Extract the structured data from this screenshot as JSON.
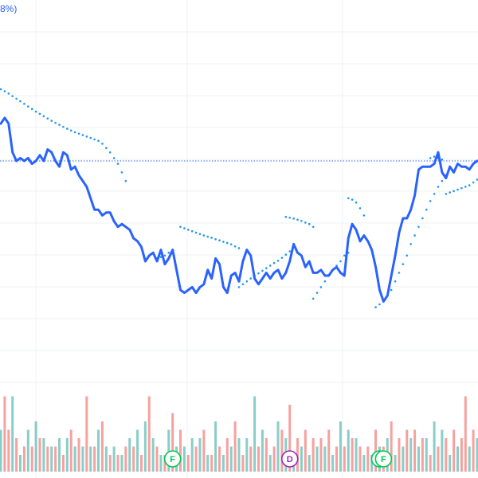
{
  "header": {
    "pct_fragment": "8%)"
  },
  "colors": {
    "price_line": "#2962ff",
    "parabolic_sar": "#2196f3",
    "ref_line": "#2962ff",
    "vol_up": "#26a69a",
    "vol_down": "#ef5350",
    "grid": "#eef0f3",
    "marker_f": "#00c853",
    "marker_d": "#9c27b0"
  },
  "chart_data": {
    "type": "line",
    "title": "",
    "xlabel": "",
    "ylabel": "",
    "grid": true,
    "ylim": [
      0,
      100
    ],
    "reference_line": 55,
    "price": [
      68,
      70,
      68,
      58,
      55,
      56,
      55,
      56,
      54,
      55,
      57,
      55,
      59,
      58,
      55,
      53,
      58,
      57,
      52,
      53,
      50,
      48,
      46,
      42,
      38,
      38,
      36,
      37,
      37,
      34,
      32,
      33,
      32,
      31,
      28,
      27,
      25,
      20,
      22,
      23,
      20,
      24,
      19,
      21,
      24,
      17,
      10,
      9,
      10,
      11,
      9,
      11,
      12,
      17,
      14,
      21,
      19,
      11,
      9,
      15,
      16,
      13,
      20,
      24,
      22,
      14,
      12,
      14,
      16,
      14,
      16,
      17,
      14,
      16,
      20,
      26,
      23,
      22,
      18,
      20,
      16,
      16,
      17,
      15,
      15,
      17,
      18,
      16,
      15,
      28,
      33,
      31,
      27,
      29,
      27,
      24,
      18,
      10,
      6,
      8,
      15,
      22,
      30,
      35,
      35,
      38,
      43,
      52,
      53,
      53,
      53,
      54,
      58,
      51,
      49,
      53,
      51,
      54,
      53,
      53,
      52,
      54,
      55
    ],
    "parabolic_sar": [
      {
        "x": [
          0,
          1,
          2,
          3,
          4,
          5,
          6,
          7,
          8,
          9,
          10,
          11,
          12,
          13,
          14,
          15,
          16,
          17,
          18,
          19,
          20,
          21,
          22,
          23,
          24,
          25,
          26,
          27,
          28,
          29,
          30,
          31,
          32
        ],
        "y": [
          80,
          79.3,
          78.5,
          77.6,
          76.7,
          75.8,
          74.9,
          74,
          73.1,
          72.2,
          71.4,
          70.6,
          69.8,
          69,
          68.3,
          67.6,
          66.9,
          66.2,
          65.6,
          65,
          64.5,
          64,
          63.5,
          63,
          62.5,
          62,
          61,
          59.5,
          58,
          56,
          54,
          51,
          48
        ]
      },
      {
        "x": [
          40,
          41,
          42,
          43,
          44
        ],
        "y": [
          21,
          21.5,
          22,
          23,
          24
        ]
      },
      {
        "x": [
          46,
          47,
          48,
          49,
          50,
          51,
          52,
          53,
          54,
          55,
          56,
          57,
          58,
          59,
          60,
          61
        ],
        "y": [
          32,
          31.5,
          31,
          30.5,
          30,
          29.5,
          29,
          28.6,
          28.2,
          27.7,
          27.3,
          26.8,
          26.4,
          25.9,
          25.2,
          24.6
        ]
      },
      {
        "x": [
          61,
          62,
          63,
          64,
          65,
          66,
          67,
          68,
          69,
          70,
          71,
          72,
          73,
          74
        ],
        "y": [
          11,
          12,
          13,
          14,
          15,
          15.8,
          16.7,
          17.6,
          18.5,
          19.4,
          20.2,
          21.2,
          22.3,
          23.5
        ]
      },
      {
        "x": [
          73,
          74,
          75,
          76,
          77,
          78,
          79,
          80
        ],
        "y": [
          35.5,
          35.2,
          34.9,
          34.5,
          34.1,
          33.5,
          33,
          32
        ]
      },
      {
        "x": [
          80,
          81,
          82,
          83,
          84,
          85,
          86,
          87,
          88,
          89
        ],
        "y": [
          7,
          9,
          11,
          13,
          15,
          17,
          18.5,
          20,
          22,
          23
        ]
      },
      {
        "x": [
          89,
          90,
          91,
          92,
          93
        ],
        "y": [
          42,
          41.5,
          40.5,
          38.5,
          36
        ]
      },
      {
        "x": [
          96,
          97,
          98,
          99,
          100,
          101,
          102,
          103,
          104,
          105,
          106,
          107,
          108,
          109,
          110,
          111,
          112,
          113,
          114
        ],
        "y": [
          4,
          5,
          6.5,
          8,
          10,
          13,
          16,
          19,
          22,
          26,
          29,
          32,
          35,
          38,
          41,
          43.5,
          46,
          48,
          50
        ]
      },
      {
        "x": [
          110,
          111,
          112,
          113
        ],
        "y": [
          56,
          56.5,
          56,
          55.5
        ]
      },
      {
        "x": [
          114,
          115,
          116,
          117,
          118,
          119,
          120,
          121,
          122
        ],
        "y": [
          43.5,
          44,
          44.5,
          45,
          45.5,
          46,
          46.5,
          47.5,
          48.5
        ]
      }
    ],
    "volume": [
      5,
      9,
      5,
      9,
      4,
      2,
      3,
      5,
      3,
      6,
      4,
      4,
      3,
      3,
      3,
      4,
      2,
      4,
      5,
      3,
      4,
      3,
      9,
      3,
      3,
      5,
      6,
      3,
      2,
      3,
      2,
      2,
      3,
      4,
      3,
      5,
      2,
      6,
      9,
      4,
      3,
      2,
      2,
      5,
      7,
      3,
      5,
      3,
      2,
      4,
      3,
      4,
      5,
      2,
      2,
      6,
      3,
      2,
      4,
      3,
      6,
      4,
      2,
      4,
      3,
      9,
      3,
      5,
      4,
      2,
      3,
      6,
      5,
      4,
      8,
      2,
      4,
      3,
      5,
      2,
      4,
      3,
      4,
      3,
      5,
      2,
      3,
      6,
      3,
      5,
      4,
      4,
      3,
      2,
      3,
      2,
      5,
      3,
      3,
      4,
      6,
      2,
      4,
      3,
      5,
      4,
      5,
      3,
      4,
      4,
      2,
      6,
      3,
      5,
      4,
      2,
      5,
      3,
      4,
      9,
      3,
      5,
      4
    ],
    "volume_colors": [
      "up",
      "down",
      "down",
      "up",
      "down",
      "up",
      "down",
      "up",
      "down",
      "up",
      "down",
      "up",
      "down",
      "up",
      "down",
      "up",
      "down",
      "up",
      "down",
      "up",
      "down",
      "up",
      "down",
      "up",
      "down",
      "up",
      "down",
      "up",
      "down",
      "up",
      "down",
      "up",
      "down",
      "up",
      "down",
      "up",
      "down",
      "up",
      "down",
      "up",
      "down",
      "up",
      "down",
      "up",
      "down",
      "up",
      "down",
      "up",
      "down",
      "up",
      "down",
      "up",
      "down",
      "up",
      "down",
      "up",
      "down",
      "up",
      "down",
      "up",
      "down",
      "up",
      "down",
      "up",
      "down",
      "up",
      "down",
      "up",
      "down",
      "up",
      "down",
      "up",
      "down",
      "up",
      "down",
      "up",
      "down",
      "up",
      "down",
      "up",
      "down",
      "up",
      "down",
      "up",
      "down",
      "up",
      "down",
      "up",
      "down",
      "up",
      "down",
      "up",
      "down",
      "up",
      "down",
      "up",
      "down",
      "up",
      "down",
      "up",
      "down",
      "up",
      "down",
      "up",
      "down",
      "up",
      "down",
      "up",
      "down",
      "up",
      "down",
      "up",
      "down",
      "up",
      "down",
      "up",
      "down",
      "up",
      "down",
      "down",
      "up",
      "down",
      "up"
    ],
    "markers": [
      {
        "label": "F",
        "kind": "F",
        "x": 44
      },
      {
        "label": "D",
        "kind": "D",
        "x": 74
      },
      {
        "label": "F",
        "kind": "F",
        "x": 97
      },
      {
        "label": "F",
        "kind": "F",
        "x": 98
      }
    ]
  }
}
